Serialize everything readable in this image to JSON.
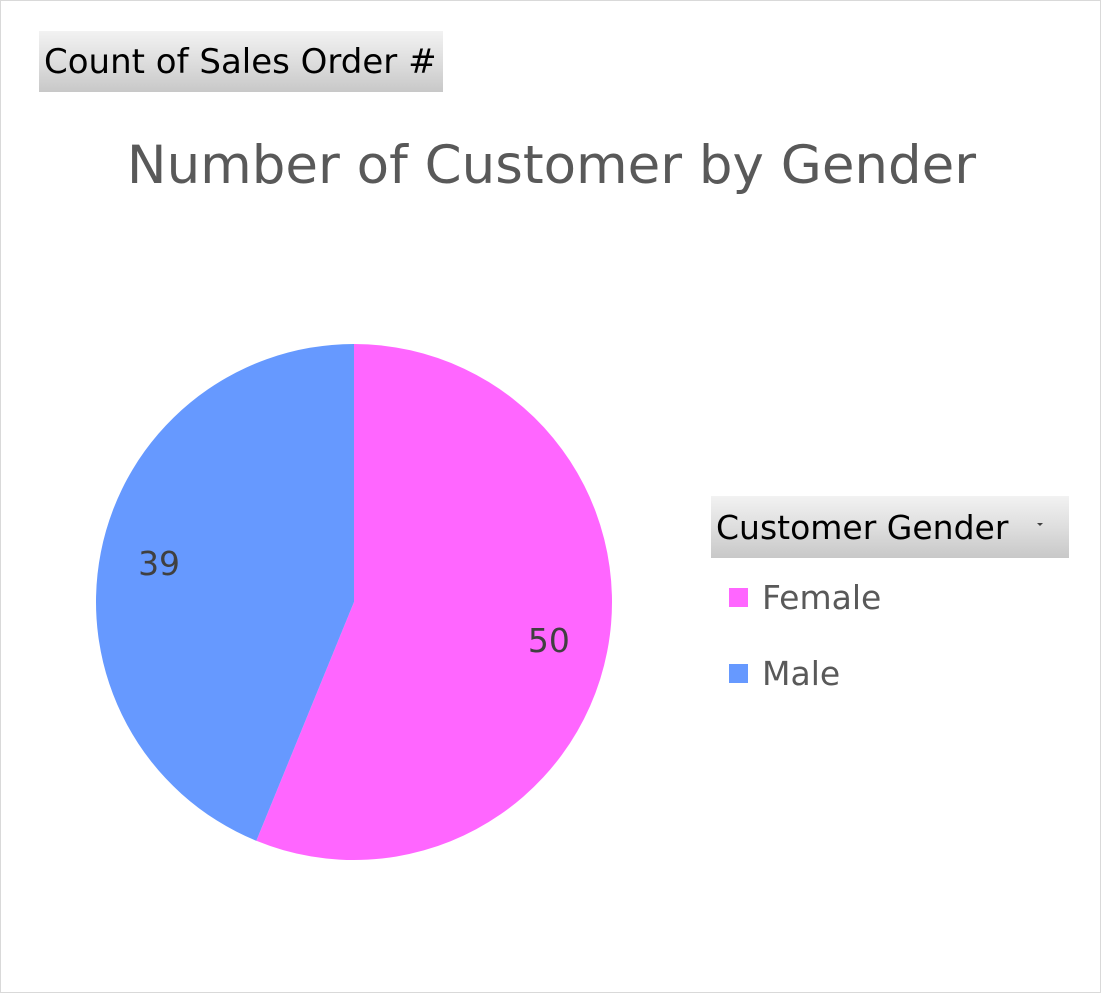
{
  "value_field_button": {
    "label": "Count of Sales Order #"
  },
  "legend_field_button": {
    "label": "Customer Gender"
  },
  "chart_data": {
    "type": "pie",
    "title": "Number of Customer by Gender",
    "categories": [
      "Female",
      "Male"
    ],
    "values": [
      50,
      39
    ],
    "colors": [
      "#ff66ff",
      "#6699ff"
    ],
    "data_labels": true,
    "start_angle": "12 o'clock, clockwise",
    "legend_position": "right"
  }
}
